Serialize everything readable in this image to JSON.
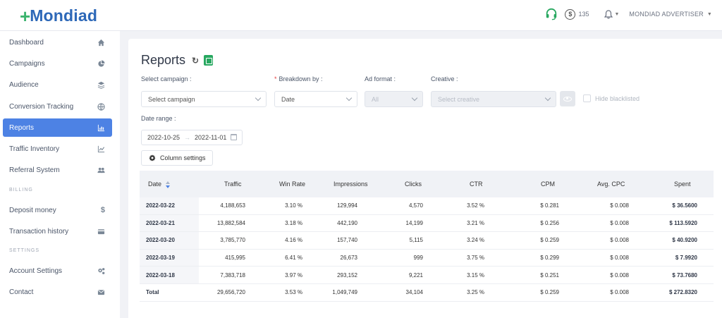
{
  "brand": {
    "logo_mark": "+",
    "logo_text": "Mondiad"
  },
  "header": {
    "support_icon": "headset-icon",
    "balance": "135",
    "balance_icon": "dollar-coin-icon",
    "notifications_icon": "bell-icon",
    "account_name": "MONDIAD ADVERTISER"
  },
  "sidebar": {
    "items": [
      {
        "label": "Dashboard",
        "icon": "home-icon"
      },
      {
        "label": "Campaigns",
        "icon": "pie-chart-icon"
      },
      {
        "label": "Audience",
        "icon": "layers-icon"
      },
      {
        "label": "Conversion Tracking",
        "icon": "globe-icon"
      },
      {
        "label": "Reports",
        "icon": "bar-chart-icon",
        "active": true
      },
      {
        "label": "Traffic Inventory",
        "icon": "line-chart-icon"
      },
      {
        "label": "Referral System",
        "icon": "users-icon"
      }
    ],
    "billing_label": "BILLING",
    "billing_items": [
      {
        "label": "Deposit money",
        "icon": "dollar-icon"
      },
      {
        "label": "Transaction history",
        "icon": "card-icon"
      }
    ],
    "settings_label": "SETTINGS",
    "settings_items": [
      {
        "label": "Account Settings",
        "icon": "gears-icon"
      },
      {
        "label": "Contact",
        "icon": "envelope-icon"
      }
    ]
  },
  "page": {
    "title": "Reports",
    "refresh_icon": "refresh-icon",
    "export_icon": "spreadsheet-icon"
  },
  "filters": {
    "campaign_label": "Select campaign :",
    "campaign_value": "Select campaign",
    "breakdown_label": "Breakdown by :",
    "breakdown_value": "Date",
    "adformat_label": "Ad format :",
    "adformat_value": "All",
    "creative_label": "Creative :",
    "creative_value": "Select creative",
    "hide_blacklisted": "Hide blacklisted",
    "daterange_label": "Date range :",
    "date_from": "2022-10-25",
    "date_to": "2022-11-01",
    "column_settings": "Column settings"
  },
  "table": {
    "columns": [
      "Date",
      "Traffic",
      "Win Rate",
      "Impressions",
      "Clicks",
      "CTR",
      "CPM",
      "Avg. CPC",
      "Spent"
    ],
    "rows": [
      [
        "2022-03-22",
        "4,188,653",
        "3.10 %",
        "129,994",
        "4,570",
        "3.52 %",
        "$ 0.281",
        "$ 0.008",
        "$ 36.5600"
      ],
      [
        "2022-03-21",
        "13,882,584",
        "3.18 %",
        "442,190",
        "14,199",
        "3.21 %",
        "$ 0.256",
        "$ 0.008",
        "$ 113.5920"
      ],
      [
        "2022-03-20",
        "3,785,770",
        "4.16 %",
        "157,740",
        "5,115",
        "3.24 %",
        "$ 0.259",
        "$ 0.008",
        "$ 40.9200"
      ],
      [
        "2022-03-19",
        "415,995",
        "6.41 %",
        "26,673",
        "999",
        "3.75 %",
        "$ 0.299",
        "$ 0.008",
        "$ 7.9920"
      ],
      [
        "2022-03-18",
        "7,383,718",
        "3.97 %",
        "293,152",
        "9,221",
        "3.15 %",
        "$ 0.251",
        "$ 0.008",
        "$ 73.7680"
      ]
    ],
    "total": [
      "Total",
      "29,656,720",
      "3.53 %",
      "1,049,749",
      "34,104",
      "3.25 %",
      "$ 0.259",
      "$ 0.008",
      "$ 272.8320"
    ]
  }
}
